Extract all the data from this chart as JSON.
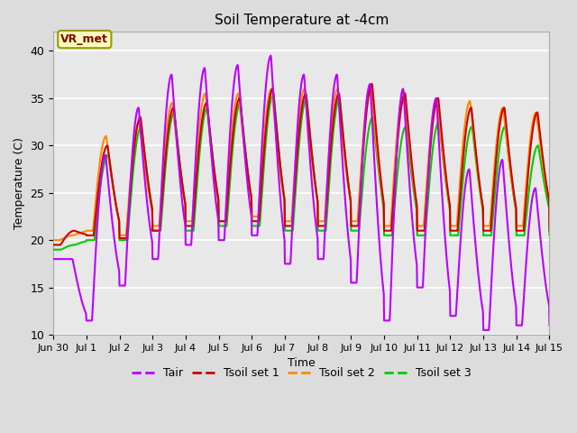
{
  "title": "Soil Temperature at -4cm",
  "xlabel": "Time",
  "ylabel": "Temperature (C)",
  "ylim": [
    10,
    42
  ],
  "xlim": [
    0,
    15
  ],
  "yticks": [
    10,
    15,
    20,
    25,
    30,
    35,
    40
  ],
  "annotation": "VR_met",
  "bg_color": "#dcdcdc",
  "plot_bg": "#e8e8e8",
  "legend_labels": [
    "Tair",
    "Tsoil set 1",
    "Tsoil set 2",
    "Tsoil set 3"
  ],
  "line_colors": [
    "#bb00ff",
    "#cc0000",
    "#ff8800",
    "#00cc00"
  ],
  "x_tick_labels": [
    "Jun 30",
    "Jul 1",
    "Jul 2",
    "Jul 3",
    "Jul 4",
    "Jul 5",
    "Jul 6",
    "Jul 7",
    "Jul 8",
    "Jul 9",
    "Jul 10",
    "Jul 11",
    "Jul 12",
    "Jul 13",
    "Jul 14",
    "Jul 15"
  ],
  "n_days": 16
}
